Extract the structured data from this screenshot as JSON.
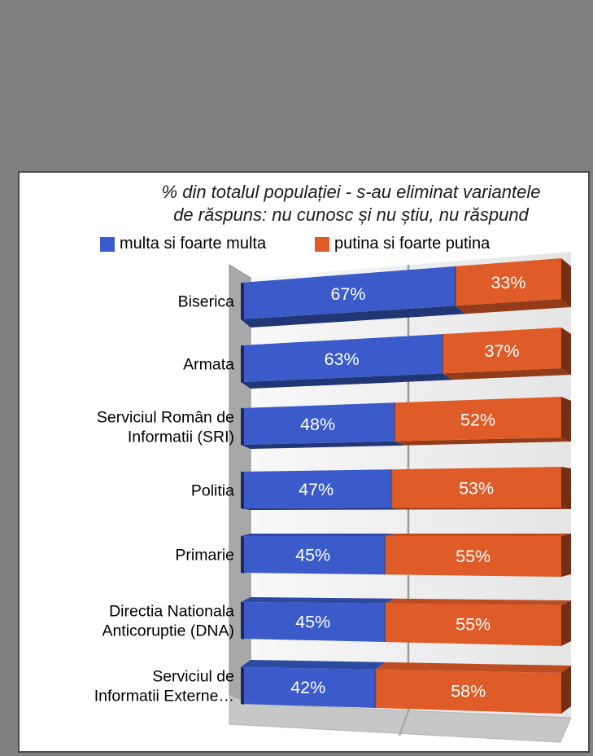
{
  "window": {
    "background_color": "#808080",
    "panel_color": "#ffffff"
  },
  "chart_data": {
    "type": "bar",
    "subtype": "3d-horizontal-100pct-stacked",
    "title_line1": "% din totalul populației - s-au eliminat variantele",
    "title_line2": "de răspuns: nu cunosc și nu știu, nu răspund",
    "legend_position": "top",
    "data_labels": "percent-inside-white",
    "value_axis": {
      "min": 0,
      "max": 100,
      "gridline_at": 50
    },
    "categories": [
      [
        "Biserica"
      ],
      [
        "Armata"
      ],
      [
        "Serviciul Român de",
        "Informatii (SRI)"
      ],
      [
        "Politia"
      ],
      [
        "Primarie"
      ],
      [
        "Directia Nationala",
        "Anticoruptie (DNA)"
      ],
      [
        "Serviciul de",
        "Informatii Externe…"
      ]
    ],
    "series": [
      {
        "name": "multa si foarte multa",
        "color": "#3a5bc9",
        "values": [
          67,
          63,
          48,
          47,
          45,
          45,
          42
        ]
      },
      {
        "name": "putina si foarte putina",
        "color": "#df5b28",
        "values": [
          33,
          37,
          52,
          53,
          55,
          55,
          58
        ]
      }
    ],
    "colors": {
      "wall_side": "#a8a8a8",
      "wall_back_light": "#f8f8f8",
      "wall_back_dark": "#e5e5e5",
      "floor": "#c7c7c7",
      "gridline": "#9b9b9b",
      "label_text": "#ffffff",
      "category_text": "#000000"
    }
  }
}
